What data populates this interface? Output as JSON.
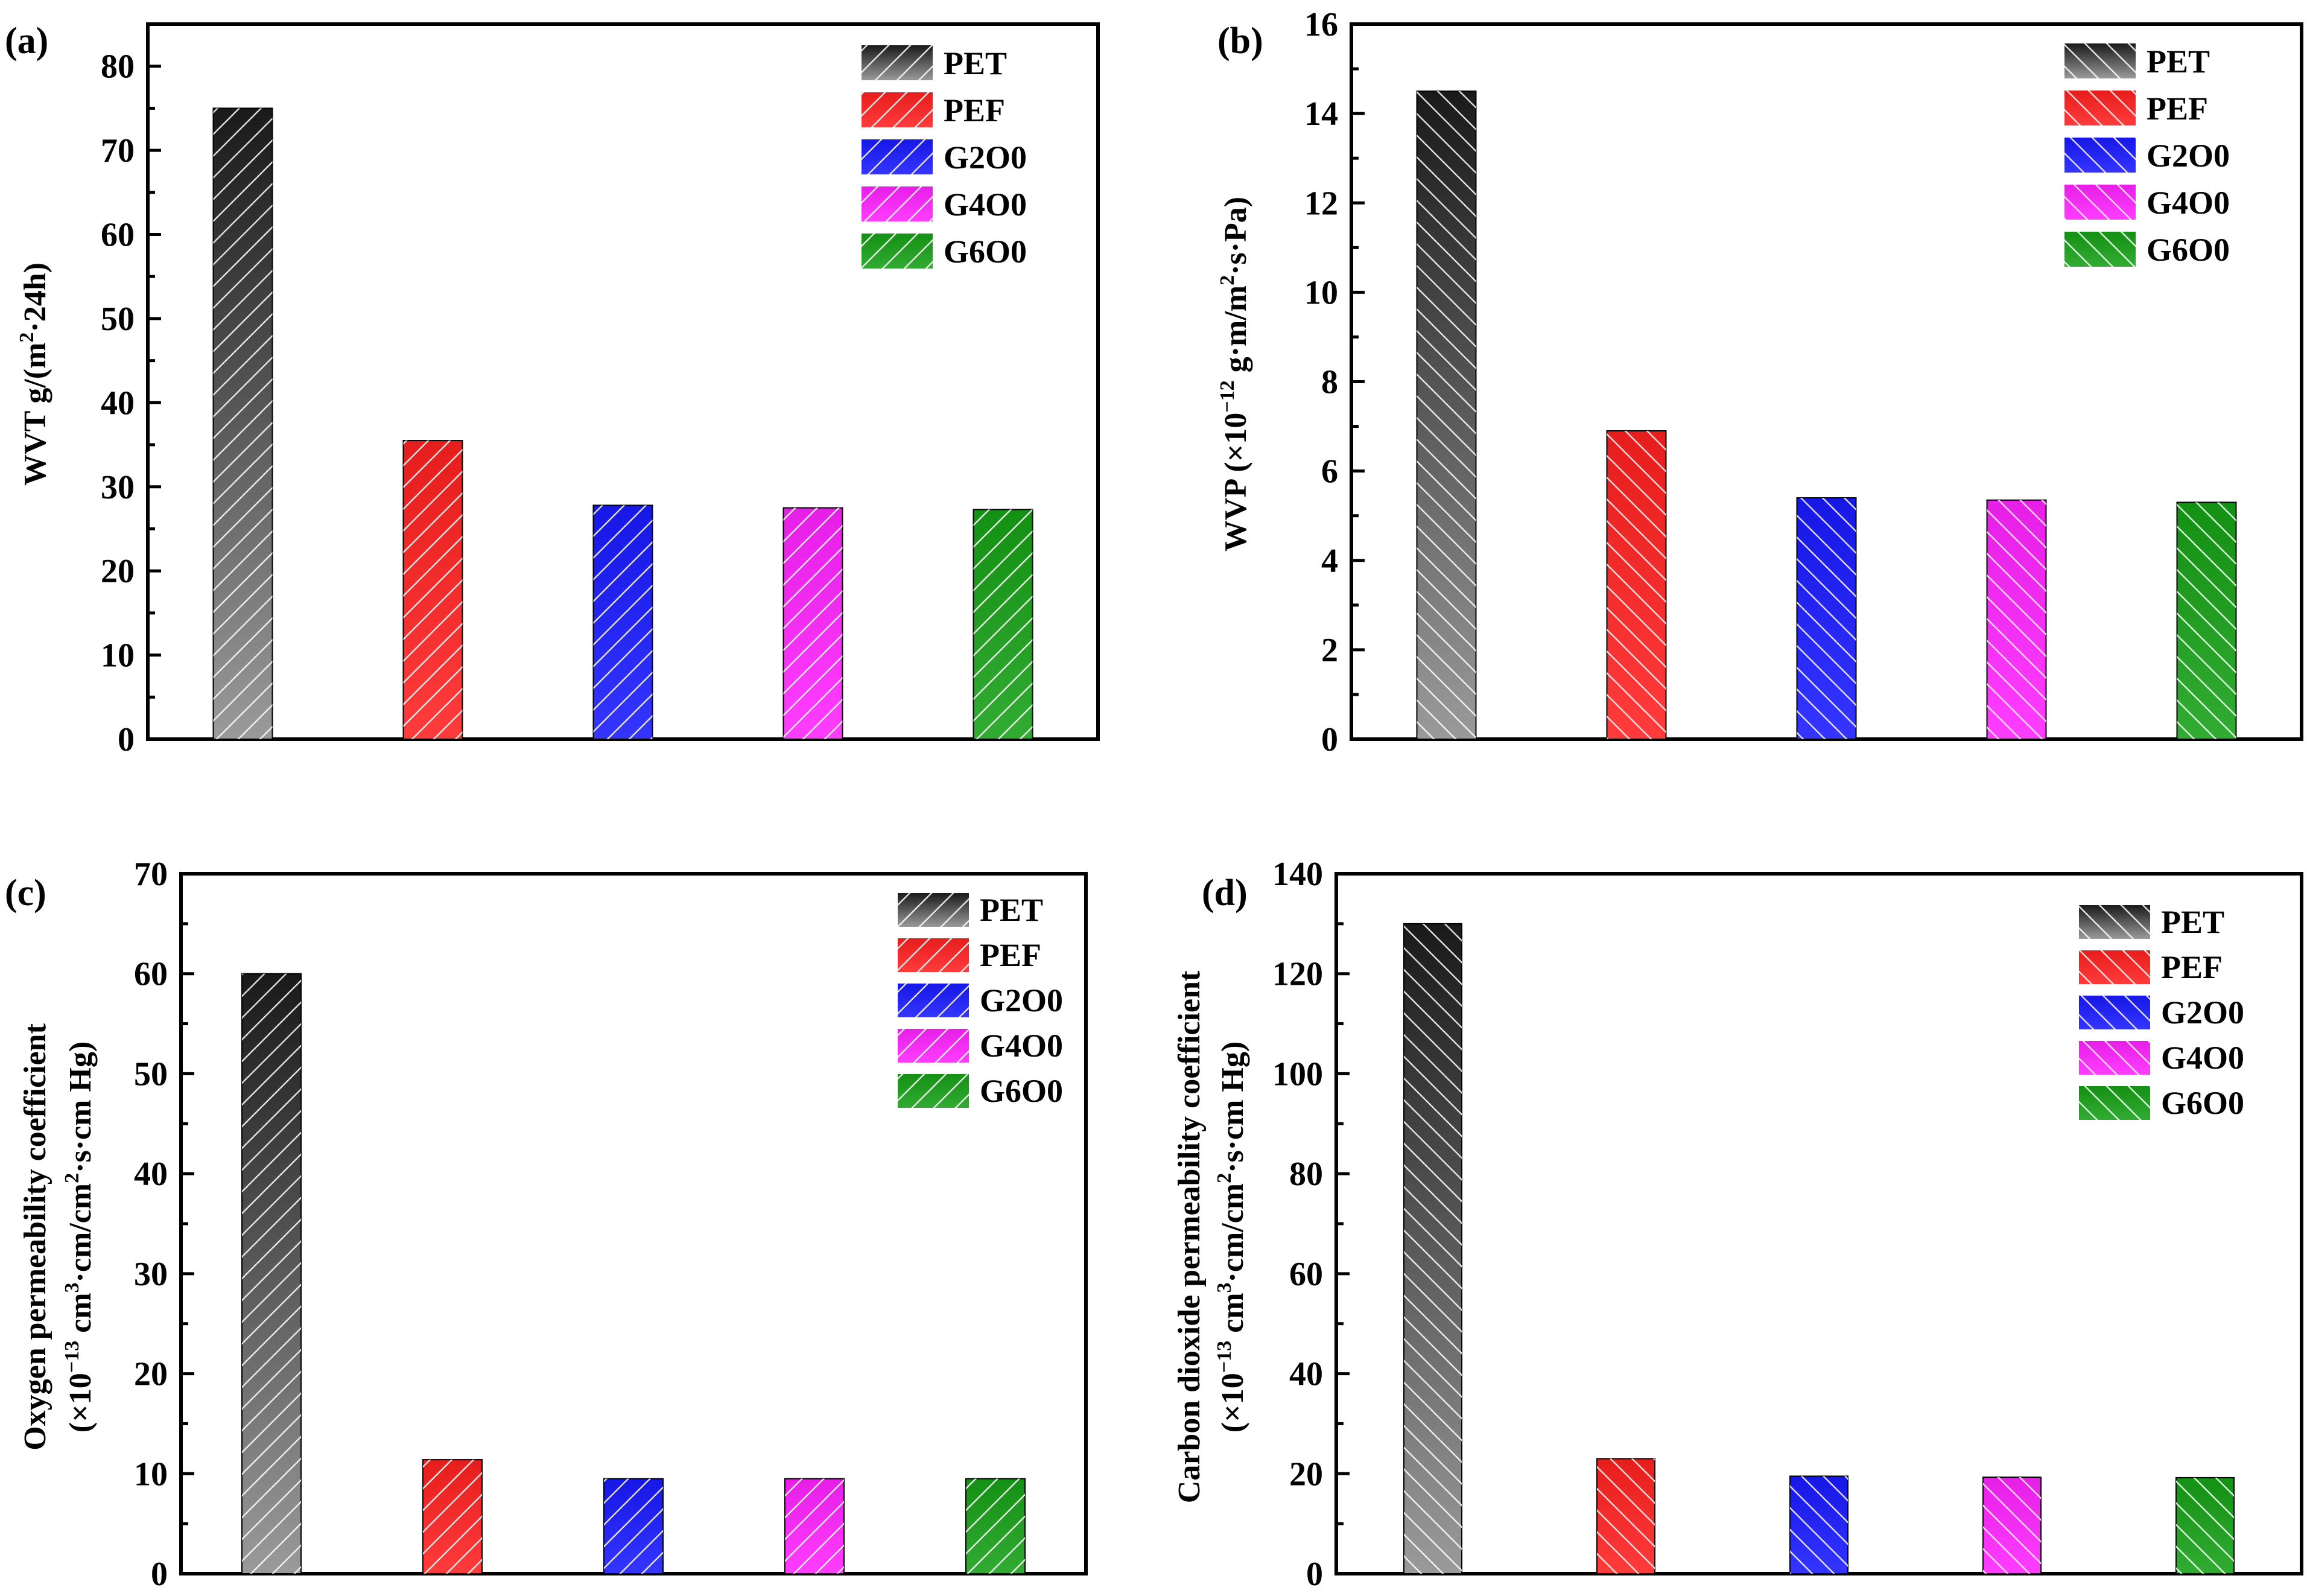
{
  "chart_data": [
    {
      "panel": "(a)",
      "type": "bar",
      "categories": [
        "PET",
        "PEF",
        "G2O0",
        "G4O0",
        "G6O0"
      ],
      "values": [
        75,
        35.5,
        27.8,
        27.5,
        27.3
      ],
      "ylim": [
        0,
        85
      ],
      "yticks": [
        0,
        10,
        20,
        30,
        40,
        50,
        60,
        70,
        80
      ],
      "xlabel": "",
      "ylabel": {
        "pre": "WVT g/(m",
        "sup": "2",
        "post": "·24h)"
      },
      "legend": [
        "PET",
        "PEF",
        "G2O0",
        "G4O0",
        "G6O0"
      ]
    },
    {
      "panel": "(b)",
      "type": "bar",
      "categories": [
        "PET",
        "PEF",
        "G2O0",
        "G4O0",
        "G6O0"
      ],
      "values": [
        14.5,
        6.9,
        5.4,
        5.35,
        5.3
      ],
      "ylim": [
        0,
        16
      ],
      "yticks": [
        0,
        2,
        4,
        6,
        8,
        10,
        12,
        14,
        16
      ],
      "xlabel": "",
      "ylabel": {
        "pre": "WVP (×10",
        "sup": "−12",
        "mid": " g·m/m",
        "sup2": "2",
        "post": "·s·Pa)"
      },
      "legend": [
        "PET",
        "PEF",
        "G2O0",
        "G4O0",
        "G6O0"
      ]
    },
    {
      "panel": "(c)",
      "type": "bar",
      "categories": [
        "PET",
        "PEF",
        "G2O0",
        "G4O0",
        "G6O0"
      ],
      "values": [
        60,
        11.4,
        9.5,
        9.5,
        9.5
      ],
      "ylim": [
        0,
        70
      ],
      "yticks": [
        0,
        10,
        20,
        30,
        40,
        50,
        60,
        70
      ],
      "xlabel": "",
      "ylabel_line1": "Oxygen permeability coefficient",
      "ylabel_line2": {
        "pre": "(×10",
        "sup": "−13",
        "mid": " cm",
        "sup2": "3",
        "mid2": "·cm/cm",
        "sup3": "2",
        "post": "·s·cm Hg)"
      },
      "legend": [
        "PET",
        "PEF",
        "G2O0",
        "G4O0",
        "G6O0"
      ]
    },
    {
      "panel": "(d)",
      "type": "bar",
      "categories": [
        "PET",
        "PEF",
        "G2O0",
        "G4O0",
        "G6O0"
      ],
      "values": [
        130,
        23,
        19.5,
        19.3,
        19.2
      ],
      "ylim": [
        0,
        140
      ],
      "yticks": [
        0,
        20,
        40,
        60,
        80,
        100,
        120,
        140
      ],
      "xlabel": "",
      "ylabel_line1": "Carbon dioxide permeability coefficient",
      "ylabel_line2": {
        "pre": "(×10",
        "sup": "−13",
        "mid": " cm",
        "sup2": "3",
        "mid2": "·cm/cm",
        "sup3": "2",
        "post": "·s·cm Hg)"
      },
      "legend": [
        "PET",
        "PEF",
        "G2O0",
        "G4O0",
        "G6O0"
      ]
    }
  ],
  "colors": {
    "PET": "#1a1a1a",
    "PEF": "#ff2020",
    "G2O0": "#1a1aff",
    "G4O0": "#ff22ff",
    "G6O0": "#16a016"
  }
}
